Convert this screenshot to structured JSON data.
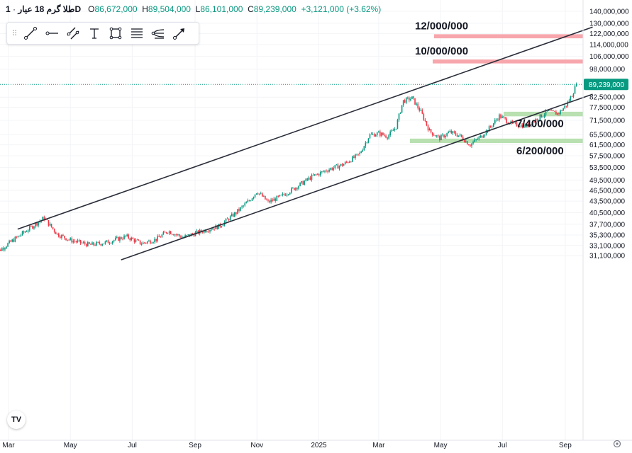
{
  "header": {
    "symbol": "طلا گرم 18 عیار",
    "interval": "1D",
    "open_label": "O",
    "open": "86,672,000",
    "high_label": "H",
    "high": "89,504,000",
    "low_label": "L",
    "low": "86,101,000",
    "close_label": "C",
    "close": "89,239,000",
    "change": "+3,121,000 (+3.62%)"
  },
  "toolbar": {
    "tools": [
      "trend-line-icon",
      "horizontal-ray-icon",
      "parallel-channel-icon",
      "text-icon",
      "rectangle-icon",
      "fib-levels-icon",
      "pitchfork-icon",
      "arrow-icon"
    ]
  },
  "tv_logo": "TV",
  "colors": {
    "up": "#089981",
    "down": "#f23645",
    "resistance_zone": "#f7a6ac",
    "support_zone": "#b8e0b0",
    "channel": "#2a2e39",
    "price_tag": "#089981"
  },
  "chart_data": {
    "type": "candlestick",
    "yscale": "log",
    "ylim": [
      30300000,
      143000000
    ],
    "yticks": [
      "140,000,000",
      "130,000,000",
      "122,000,000",
      "114,000,000",
      "106,000,000",
      "98,000,000",
      "82,500,000",
      "77,500,000",
      "71,500,000",
      "65,500,000",
      "61,500,000",
      "57,500,000",
      "53,500,000",
      "49,500,000",
      "46,500,000",
      "43,500,000",
      "40,500,000",
      "37,700,000",
      "35,300,000",
      "33,100,000",
      "31,100,000"
    ],
    "xticks": [
      "Mar",
      "May",
      "Jul",
      "Sep",
      "Nov",
      "2025",
      "Mar",
      "May",
      "Jul",
      "Sep"
    ],
    "last_price": "89,239,000",
    "zones": [
      {
        "type": "resistance",
        "label": "12/000/000",
        "from": 118500000,
        "to": 121500000
      },
      {
        "type": "resistance",
        "label": "10/000/000",
        "from": 101500000,
        "to": 104000000
      },
      {
        "type": "support",
        "label": "7/400/000",
        "from": 73300000,
        "to": 75400000
      },
      {
        "type": "support",
        "label": "6/200/000",
        "from": 62200000,
        "to": 63900000
      }
    ],
    "channel": {
      "upper": [
        {
          "date": "2024-03-10",
          "value": 36600000
        },
        {
          "date": "2025-09-28",
          "value": 127000000
        }
      ],
      "lower": [
        {
          "date": "2024-06-20",
          "value": 30300000
        },
        {
          "date": "2025-09-28",
          "value": 84000000
        }
      ]
    },
    "price_path": [
      {
        "date": "2024-02-15",
        "value": 31200000
      },
      {
        "date": "2024-03-01",
        "value": 33500000
      },
      {
        "date": "2024-03-20",
        "value": 36500000
      },
      {
        "date": "2024-04-05",
        "value": 39200000
      },
      {
        "date": "2024-04-18",
        "value": 35500000
      },
      {
        "date": "2024-05-01",
        "value": 34200000
      },
      {
        "date": "2024-05-20",
        "value": 33200000
      },
      {
        "date": "2024-06-05",
        "value": 33700000
      },
      {
        "date": "2024-06-25",
        "value": 35000000
      },
      {
        "date": "2024-07-10",
        "value": 33500000
      },
      {
        "date": "2024-07-25",
        "value": 34400000
      },
      {
        "date": "2024-08-05",
        "value": 36200000
      },
      {
        "date": "2024-08-20",
        "value": 34800000
      },
      {
        "date": "2024-09-10",
        "value": 36300000
      },
      {
        "date": "2024-09-25",
        "value": 37300000
      },
      {
        "date": "2024-10-10",
        "value": 40200000
      },
      {
        "date": "2024-10-25",
        "value": 43800000
      },
      {
        "date": "2024-11-01",
        "value": 46200000
      },
      {
        "date": "2024-11-12",
        "value": 43200000
      },
      {
        "date": "2024-11-25",
        "value": 44800000
      },
      {
        "date": "2024-12-10",
        "value": 47500000
      },
      {
        "date": "2024-12-25",
        "value": 50500000
      },
      {
        "date": "2025-01-10",
        "value": 52800000
      },
      {
        "date": "2025-01-25",
        "value": 54500000
      },
      {
        "date": "2025-02-10",
        "value": 58000000
      },
      {
        "date": "2025-02-20",
        "value": 65300000
      },
      {
        "date": "2025-03-01",
        "value": 66000000
      },
      {
        "date": "2025-03-10",
        "value": 64800000
      },
      {
        "date": "2025-03-18",
        "value": 68500000
      },
      {
        "date": "2025-03-25",
        "value": 80500000
      },
      {
        "date": "2025-04-03",
        "value": 82000000
      },
      {
        "date": "2025-04-12",
        "value": 75000000
      },
      {
        "date": "2025-04-20",
        "value": 67000000
      },
      {
        "date": "2025-04-30",
        "value": 64000000
      },
      {
        "date": "2025-05-10",
        "value": 66500000
      },
      {
        "date": "2025-05-20",
        "value": 65000000
      },
      {
        "date": "2025-05-30",
        "value": 61500000
      },
      {
        "date": "2025-06-10",
        "value": 64800000
      },
      {
        "date": "2025-06-20",
        "value": 69000000
      },
      {
        "date": "2025-06-28",
        "value": 73500000
      },
      {
        "date": "2025-07-10",
        "value": 70000000
      },
      {
        "date": "2025-07-25",
        "value": 69000000
      },
      {
        "date": "2025-08-05",
        "value": 72500000
      },
      {
        "date": "2025-08-15",
        "value": 75500000
      },
      {
        "date": "2025-08-25",
        "value": 74500000
      },
      {
        "date": "2025-09-02",
        "value": 78500000
      },
      {
        "date": "2025-09-08",
        "value": 84000000
      },
      {
        "date": "2025-09-12",
        "value": 89239000
      }
    ]
  }
}
